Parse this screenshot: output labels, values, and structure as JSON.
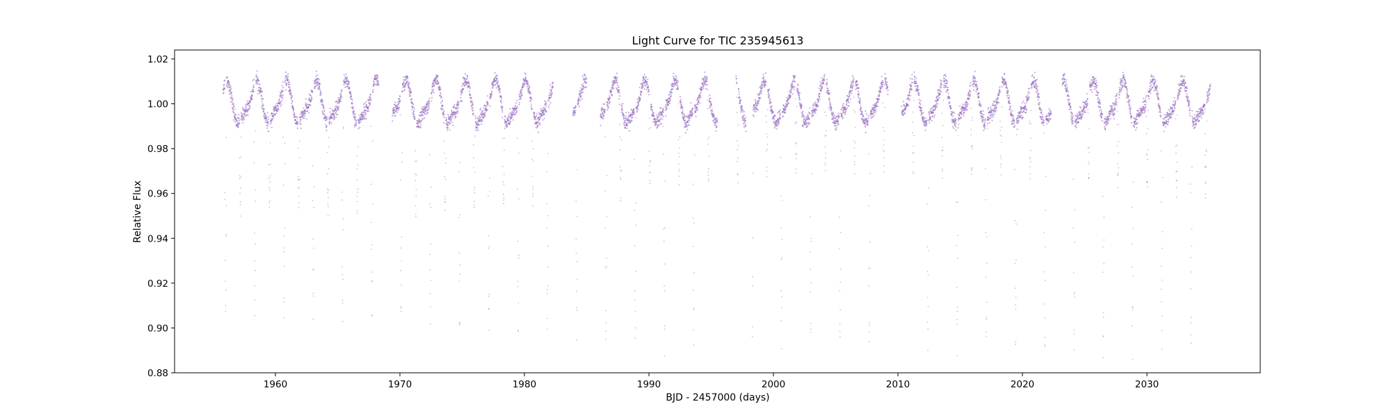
{
  "chart_data": {
    "type": "scatter",
    "title": "Light Curve for TIC 235945613",
    "xlabel": "BJD - 2457000 (days)",
    "ylabel": "Relative Flux",
    "xlim": [
      1951.9,
      2039.1
    ],
    "ylim": [
      0.88,
      1.024
    ],
    "xticks": [
      1960,
      1970,
      1980,
      1990,
      2000,
      2010,
      2020,
      2030
    ],
    "yticks": [
      0.88,
      0.9,
      0.92,
      0.94,
      0.96,
      0.98,
      1.0,
      1.02
    ],
    "ytick_labels": [
      "0.88",
      "0.90",
      "0.92",
      "0.94",
      "0.96",
      "0.98",
      "1.00",
      "1.02"
    ],
    "grid": false,
    "legend": "none",
    "marker_color": "#9467bd",
    "series": [
      {
        "segments": [
          [
            1955.8,
            1968.3
          ],
          [
            1969.4,
            1982.3
          ],
          [
            1983.9,
            1985.0
          ],
          [
            1986.1,
            1995.5
          ],
          [
            1997.0,
            1997.8
          ],
          [
            1998.3,
            2009.2
          ],
          [
            2010.3,
            2022.3
          ],
          [
            2023.2,
            2035.1
          ]
        ],
        "primary_eclipse_period_days": 2.35,
        "primary_eclipse_epoch": 1956.0,
        "primary_eclipse_depth": 0.895,
        "secondary_eclipse_depth": 0.958,
        "spot_modulation_period_days": 2.4,
        "out_of_eclipse_level": 1.0,
        "out_of_eclipse_range": [
          0.99,
          1.012
        ]
      }
    ]
  }
}
